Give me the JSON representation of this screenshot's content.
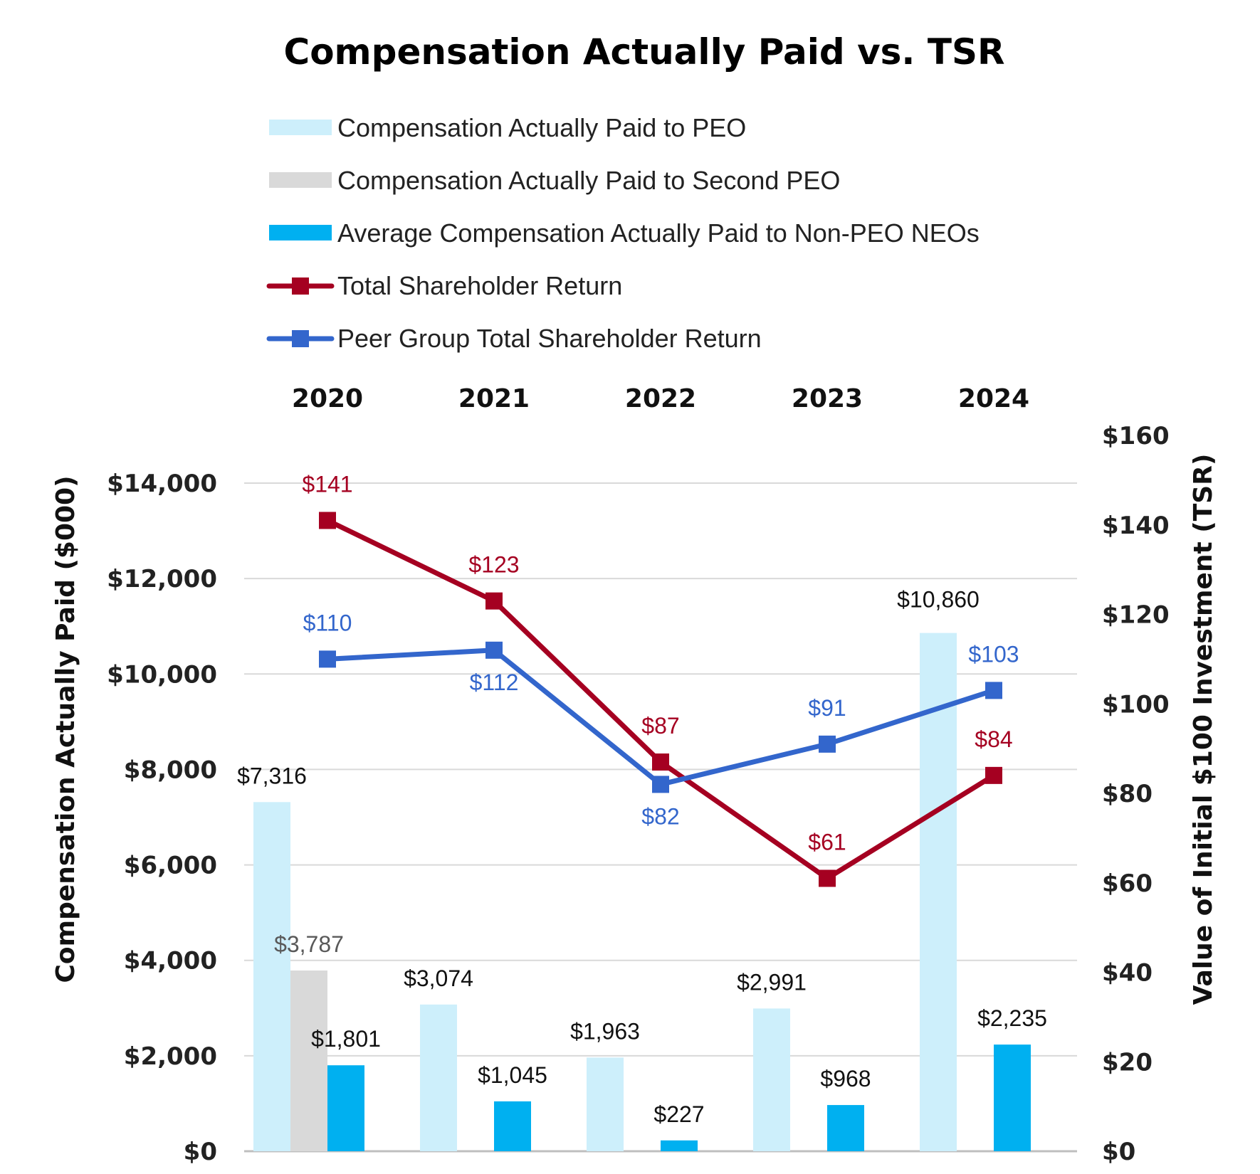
{
  "chart_data": {
    "type": "bar",
    "title": "Compensation Actually Paid vs. TSR",
    "categories": [
      "2020",
      "2021",
      "2022",
      "2023",
      "2024"
    ],
    "y_left": {
      "label": "Compensation Actually Paid ($000)",
      "ylim": [
        0,
        14000
      ],
      "ticks": [
        0,
        2000,
        4000,
        6000,
        8000,
        10000,
        12000,
        14000
      ],
      "tick_labels": [
        "$0",
        "$2,000",
        "$4,000",
        "$6,000",
        "$8,000",
        "$10,000",
        "$12,000",
        "$14,000"
      ]
    },
    "y_right": {
      "label": "Value of Initial $100 Investment (TSR)",
      "ylim": [
        0,
        160
      ],
      "ticks": [
        0,
        20,
        40,
        60,
        80,
        100,
        120,
        140,
        160
      ],
      "tick_labels": [
        "$0",
        "$20",
        "$40",
        "$60",
        "$80",
        "$100",
        "$120",
        "$140",
        "$160"
      ]
    },
    "grid": true,
    "legend_position": "top",
    "bar_series": [
      {
        "name": "Compensation Actually Paid to PEO",
        "color": "#CDEFFB",
        "label_color": "#111111",
        "values": [
          7316,
          3074,
          1963,
          2991,
          10860
        ],
        "labels": [
          "$7,316",
          "$3,074",
          "$1,963",
          "$2,991",
          "$10,860"
        ]
      },
      {
        "name": "Compensation Actually Paid to Second PEO",
        "color": "#D9D9D9",
        "label_color": "#595959",
        "values": [
          3787,
          null,
          null,
          null,
          null
        ],
        "labels": [
          "$3,787",
          "",
          "",
          "",
          ""
        ]
      },
      {
        "name": "Average Compensation Actually Paid to Non-PEO NEOs",
        "color": "#00B0F0",
        "label_color": "#111111",
        "values": [
          1801,
          1045,
          227,
          968,
          2235
        ],
        "labels": [
          "$1,801",
          "$1,045",
          "$227",
          "$968",
          "$2,235"
        ]
      }
    ],
    "line_series": [
      {
        "name": "Total Shareholder Return",
        "color": "#A50021",
        "axis": "right",
        "values": [
          141,
          123,
          87,
          61,
          84
        ],
        "labels": [
          "$141",
          "$123",
          "$87",
          "$61",
          "$84"
        ]
      },
      {
        "name": "Peer Group Total Shareholder Return",
        "color": "#3366CC",
        "axis": "right",
        "values": [
          110,
          112,
          82,
          91,
          103
        ],
        "labels": [
          "$110",
          "$112",
          "$82",
          "$91",
          "$103"
        ]
      }
    ]
  }
}
